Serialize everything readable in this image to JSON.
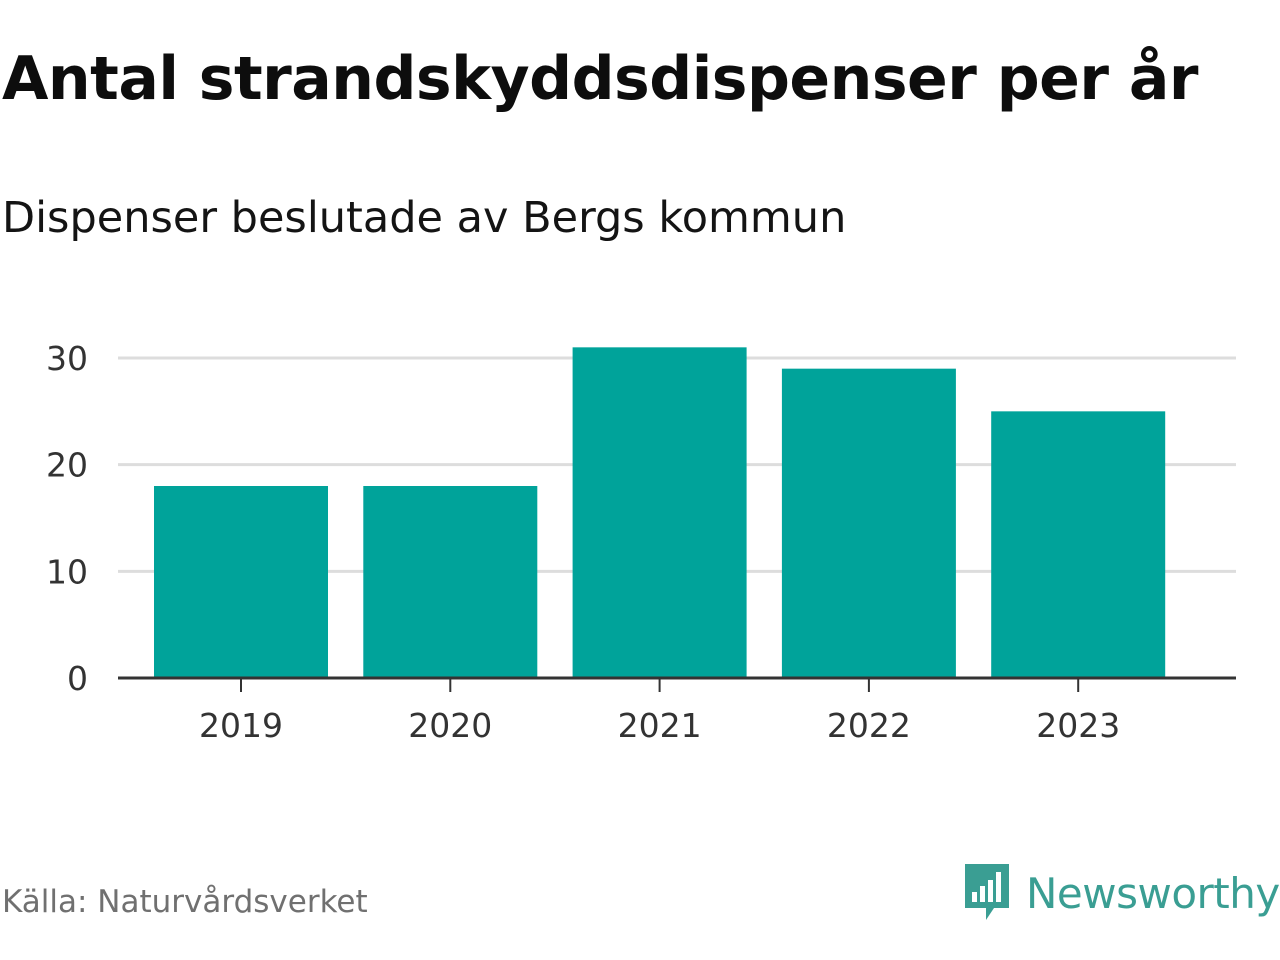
{
  "header": {
    "title": "Antal strandskyddsdispenser per år",
    "subtitle": "Dispenser beslutade av Bergs kommun"
  },
  "footer": {
    "source": "Källa: Naturvårdsverket",
    "brand": "Newsworthy",
    "brand_icon": "newsworthy-logo-icon"
  },
  "colors": {
    "bar": "#00a39a",
    "grid": "#dddddd",
    "axis": "#333333",
    "brand": "#3a9e93"
  },
  "chart_data": {
    "type": "bar",
    "title": "Antal strandskyddsdispenser per år",
    "subtitle": "Dispenser beslutade av Bergs kommun",
    "categories": [
      "2019",
      "2020",
      "2021",
      "2022",
      "2023"
    ],
    "values": [
      18,
      18,
      31,
      29,
      25
    ],
    "xlabel": "",
    "ylabel": "",
    "ylim": [
      0,
      30
    ],
    "yticks": [
      0,
      10,
      20,
      30
    ],
    "grid": true
  }
}
